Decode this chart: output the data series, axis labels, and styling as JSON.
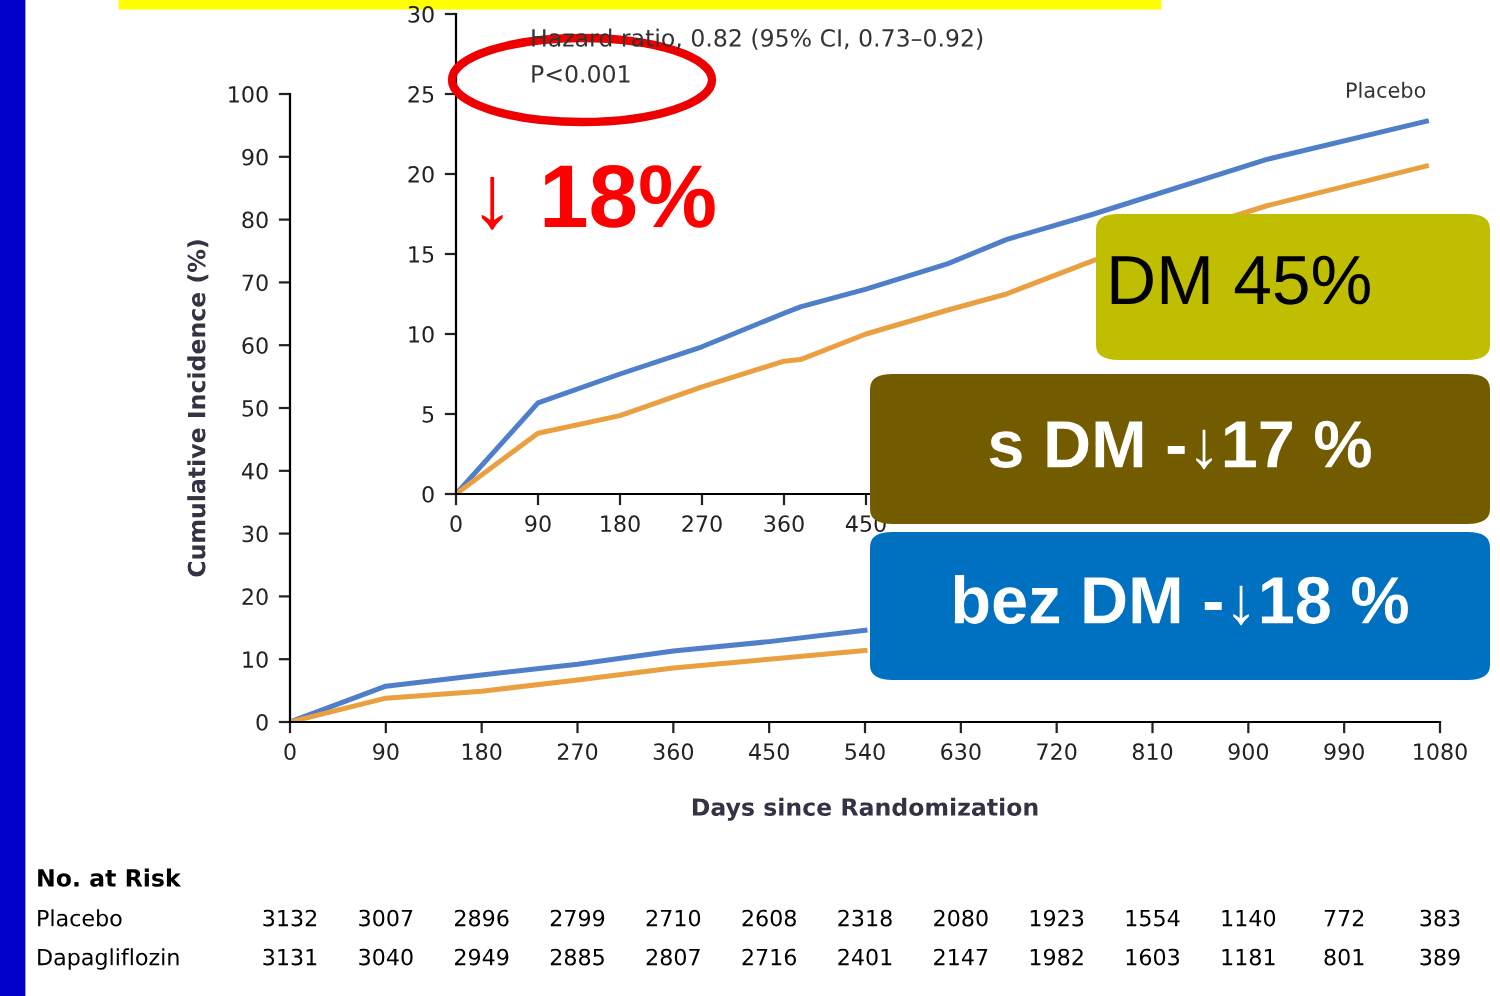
{
  "chart_data": [
    {
      "type": "line",
      "xlabel": "Days since Randomization",
      "ylabel": "Cumulative Incidence (%)",
      "xlim": [
        0,
        1080
      ],
      "ylim": [
        0,
        100
      ],
      "xticks": [
        0,
        90,
        180,
        270,
        360,
        450,
        540,
        630,
        720,
        810,
        900,
        990,
        1080
      ],
      "yticks": [
        0,
        10,
        20,
        30,
        40,
        50,
        60,
        70,
        80,
        90,
        100
      ],
      "grid": false,
      "legend": false,
      "marker": "none",
      "line_style": "solid",
      "series": [
        {
          "color": "#4f7fc8",
          "x": [
            0,
            90,
            180,
            270,
            360,
            450,
            540
          ],
          "values": [
            0,
            5.7,
            7.5,
            9.2,
            11.3,
            12.8,
            14.6
          ]
        },
        {
          "color": "#eaa040",
          "x": [
            0,
            90,
            180,
            270,
            360,
            450,
            540
          ],
          "values": [
            0,
            3.8,
            4.9,
            6.7,
            8.6,
            10,
            11.4
          ]
        }
      ],
      "annotations": [
        "No. at Risk",
        "Placebo",
        "3132",
        "3007",
        "2896",
        "2799",
        "2710",
        "2608",
        "2318",
        "2080",
        "1923",
        "1554",
        "1140",
        "772",
        "383",
        "Dapagliflozin",
        "3131",
        "3040",
        "2949",
        "2885",
        "2807",
        "2716",
        "2401",
        "2147",
        "1982",
        "1603",
        "1181",
        "801",
        "389"
      ]
    },
    {
      "type": "line",
      "xlim": [
        0,
        1080
      ],
      "ylim": [
        0,
        30
      ],
      "xticks": [
        0,
        90,
        180,
        270,
        360,
        450
      ],
      "yticks": [
        0,
        5,
        10,
        15,
        20,
        25,
        30
      ],
      "grid": false,
      "legend": false,
      "marker": "none",
      "line_style": "solid",
      "series": [
        {
          "name": "Placebo",
          "color": "#4f7fc8",
          "x": [
            0,
            90,
            180,
            270,
            360,
            378,
            450,
            540,
            604,
            700,
            889,
            1065
          ],
          "values": [
            0,
            5.7,
            7.5,
            9.2,
            11.3,
            11.7,
            12.8,
            14.4,
            15.9,
            17.5,
            20.9,
            23.3
          ]
        },
        {
          "color": "#eaa040",
          "x": [
            0,
            90,
            180,
            270,
            360,
            378,
            450,
            540,
            604,
            700,
            889,
            1065
          ],
          "values": [
            0,
            3.8,
            4.9,
            6.7,
            8.3,
            8.4,
            10,
            11.5,
            12.5,
            14.6,
            18,
            20.5
          ]
        }
      ],
      "annotations": [
        "Hazard ratio, 0.82 (95% CI, 0.73–0.92)",
        "P<0.001",
        "↓ 18%",
        "DM 45%",
        "s DM -↓17 %",
        "bez DM -↓18 %"
      ]
    }
  ]
}
